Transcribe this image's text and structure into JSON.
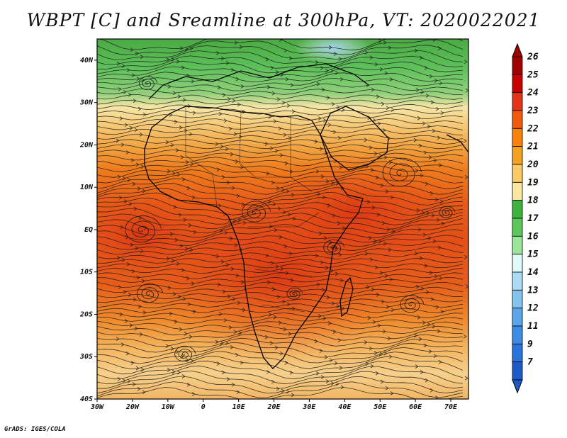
{
  "title": "WBPT [C] and Sreamline at 300hPa, VT: 2020022021",
  "credit": "GrADS: IGES/COLA",
  "map": {
    "lon_range": [
      -30,
      75
    ],
    "lat_range": [
      -40,
      45
    ],
    "lon_ticks": [
      {
        "value": -30,
        "label": "30W"
      },
      {
        "value": -20,
        "label": "20W"
      },
      {
        "value": -10,
        "label": "10W"
      },
      {
        "value": 0,
        "label": "0"
      },
      {
        "value": 10,
        "label": "10E"
      },
      {
        "value": 20,
        "label": "20E"
      },
      {
        "value": 30,
        "label": "30E"
      },
      {
        "value": 40,
        "label": "40E"
      },
      {
        "value": 50,
        "label": "50E"
      },
      {
        "value": 60,
        "label": "60E"
      },
      {
        "value": 70,
        "label": "70E"
      }
    ],
    "lat_ticks": [
      {
        "value": 40,
        "label": "40N"
      },
      {
        "value": 30,
        "label": "30N"
      },
      {
        "value": 20,
        "label": "20N"
      },
      {
        "value": 10,
        "label": "10N"
      },
      {
        "value": 0,
        "label": "EQ"
      },
      {
        "value": -10,
        "label": "10S"
      },
      {
        "value": -20,
        "label": "20S"
      },
      {
        "value": -30,
        "label": "30S"
      },
      {
        "value": -40,
        "label": "40S"
      }
    ]
  },
  "colorbar": {
    "levels": [
      {
        "label": "26",
        "color": "#a00000"
      },
      {
        "label": "25",
        "color": "#c80000"
      },
      {
        "label": "24",
        "color": "#e63216"
      },
      {
        "label": "23",
        "color": "#f05a0a"
      },
      {
        "label": "22",
        "color": "#fa820a"
      },
      {
        "label": "21",
        "color": "#f5a01e"
      },
      {
        "label": "20",
        "color": "#fac864"
      },
      {
        "label": "19",
        "color": "#fae6a0"
      },
      {
        "label": "18",
        "color": "#3cb43c"
      },
      {
        "label": "17",
        "color": "#5ac85a"
      },
      {
        "label": "16",
        "color": "#9ae69a"
      },
      {
        "label": "15",
        "color": "#e0fafa"
      },
      {
        "label": "14",
        "color": "#aadcf5"
      },
      {
        "label": "13",
        "color": "#82c3f0"
      },
      {
        "label": "12",
        "color": "#5aa5eb"
      },
      {
        "label": "11",
        "color": "#3c8ce6"
      },
      {
        "label": "9",
        "color": "#2873dc"
      },
      {
        "label": "7",
        "color": "#1e5ac8"
      }
    ]
  }
}
